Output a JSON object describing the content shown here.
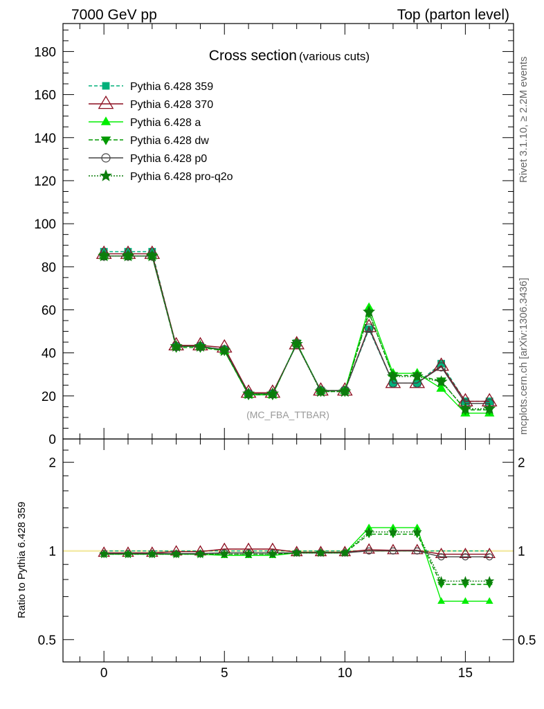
{
  "header": {
    "left": "7000 GeV pp",
    "right": "Top (parton level)",
    "side_top": "Rivet 3.1.10, ≥ 2.2M events",
    "side_bottom": "mcplots.cern.ch [arXiv:1306.3436]"
  },
  "chart_data": [
    {
      "type": "line",
      "title": "Cross section",
      "subtitle": "(various cuts)",
      "watermark": "(MC_FBA_TTBAR)",
      "xlim": [
        -1.7,
        17
      ],
      "ylim": [
        0,
        193
      ],
      "yticks": [
        0,
        20,
        40,
        60,
        80,
        100,
        120,
        140,
        160,
        180
      ],
      "x": [
        0,
        1,
        2,
        3,
        4,
        5,
        6,
        7,
        8,
        9,
        10,
        11,
        12,
        13,
        14,
        15,
        16
      ],
      "legend": "top-left",
      "series": [
        {
          "name": "Pythia 6.428 359",
          "color": "#00b07a",
          "dash": "5,3",
          "marker": "square-filled",
          "values": [
            87,
            87,
            87,
            43,
            43,
            41.5,
            21,
            21,
            44.5,
            22.5,
            22.5,
            51,
            26,
            26,
            35,
            17.5,
            17.5
          ]
        },
        {
          "name": "Pythia 6.428 370",
          "color": "#8b0d1f",
          "dash": "",
          "marker": "triangle-open",
          "values": [
            86,
            86,
            86,
            43.5,
            43.5,
            42.5,
            21.5,
            21.5,
            44,
            22.5,
            22.5,
            52,
            26,
            26,
            34,
            17.5,
            17.5
          ]
        },
        {
          "name": "Pythia 6.428 a",
          "color": "#00ee00",
          "dash": "",
          "marker": "triangle-filled",
          "values": [
            85,
            85,
            85,
            43,
            43,
            41,
            20.5,
            20.5,
            44.5,
            22.5,
            22.5,
            61,
            30.5,
            30.5,
            23.5,
            12,
            12
          ]
        },
        {
          "name": "Pythia 6.428 dw",
          "color": "#009900",
          "dash": "6,3",
          "marker": "triangle-down-filled",
          "values": [
            85,
            85,
            85,
            42.5,
            42.5,
            41,
            20.5,
            20.5,
            44.5,
            22,
            22,
            58.5,
            29.5,
            29.5,
            27,
            13.5,
            13.5
          ]
        },
        {
          "name": "Pythia 6.428 p0",
          "color": "#444444",
          "dash": "",
          "marker": "circle-open",
          "values": [
            85,
            85,
            85,
            43,
            43,
            41.5,
            21,
            21,
            44,
            22.5,
            22.5,
            51.5,
            26,
            26,
            33.5,
            16.5,
            16.5
          ]
        },
        {
          "name": "Pythia 6.428 pro-q2o",
          "color": "#0c7d0c",
          "dash": "2,2",
          "marker": "star",
          "values": [
            85,
            85,
            85,
            43,
            43,
            41,
            21,
            21,
            44,
            22,
            22,
            59,
            29,
            29,
            26.5,
            14,
            14
          ]
        }
      ]
    },
    {
      "type": "line",
      "ylabel": "Ratio to Pythia 6.428 359",
      "xlim": [
        -1.7,
        17
      ],
      "ylim": [
        0.42,
        2.4
      ],
      "yscale": "log",
      "yticks": [
        0.5,
        1,
        2
      ],
      "xticks": [
        0,
        5,
        10,
        15
      ],
      "x": [
        0,
        1,
        2,
        3,
        4,
        5,
        6,
        7,
        8,
        9,
        10,
        11,
        12,
        13,
        14,
        15,
        16
      ],
      "series": [
        {
          "name": "Pythia 6.428 359",
          "values": [
            1,
            1,
            1,
            1,
            1,
            1,
            1,
            1,
            1,
            1,
            1,
            1,
            1,
            1,
            1,
            1,
            1
          ]
        },
        {
          "name": "Pythia 6.428 370",
          "values": [
            0.985,
            0.985,
            0.985,
            0.995,
            0.995,
            1.015,
            1.015,
            1.015,
            0.99,
            0.99,
            0.99,
            1.01,
            1.005,
            1.005,
            0.975,
            0.975,
            0.975
          ]
        },
        {
          "name": "Pythia 6.428 a",
          "values": [
            0.975,
            0.975,
            0.975,
            0.975,
            0.975,
            0.965,
            0.965,
            0.965,
            0.985,
            0.985,
            0.985,
            1.2,
            1.2,
            1.2,
            0.675,
            0.675,
            0.675
          ]
        },
        {
          "name": "Pythia 6.428 dw",
          "values": [
            0.975,
            0.975,
            0.975,
            0.975,
            0.975,
            0.975,
            0.975,
            0.975,
            0.985,
            0.985,
            0.985,
            1.14,
            1.14,
            1.14,
            0.77,
            0.77,
            0.77
          ]
        },
        {
          "name": "Pythia 6.428 p0",
          "values": [
            0.98,
            0.98,
            0.98,
            0.98,
            0.98,
            0.985,
            0.985,
            0.985,
            0.985,
            0.985,
            0.985,
            1.0,
            1.0,
            1.0,
            0.955,
            0.955,
            0.955
          ]
        },
        {
          "name": "Pythia 6.428 pro-q2o",
          "values": [
            0.975,
            0.975,
            0.975,
            0.975,
            0.975,
            0.975,
            0.975,
            0.975,
            0.985,
            0.985,
            0.985,
            1.16,
            1.16,
            1.16,
            0.79,
            0.79,
            0.79
          ]
        }
      ]
    }
  ]
}
